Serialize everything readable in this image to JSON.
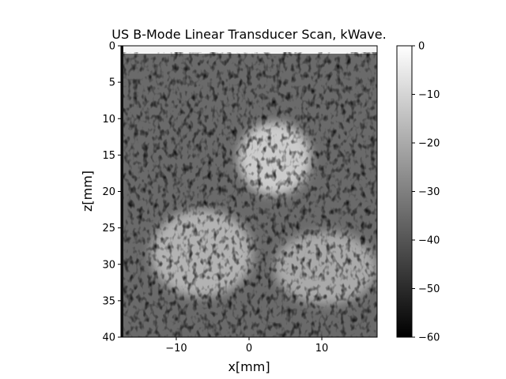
{
  "chart_data": {
    "type": "heatmap",
    "title": "US B-Mode Linear Transducer Scan, kWave.",
    "xlabel": "x[mm]",
    "ylabel": "z[mm]",
    "xlim": [
      -17.6,
      17.6
    ],
    "ylim": [
      40,
      0
    ],
    "x_ticks": [
      -10,
      0,
      10
    ],
    "x_tick_labels": [
      "−10",
      "0",
      "10"
    ],
    "y_ticks": [
      0,
      5,
      10,
      15,
      20,
      25,
      30,
      35,
      40
    ],
    "y_tick_labels": [
      "0",
      "5",
      "10",
      "15",
      "20",
      "25",
      "30",
      "35",
      "40"
    ],
    "colormap": "gray",
    "colorbar": {
      "range": [
        -60,
        0
      ],
      "ticks": [
        0,
        -10,
        -20,
        -30,
        -40,
        -50,
        -60
      ],
      "tick_labels": [
        "0",
        "−10",
        "−20",
        "−30",
        "−40",
        "−50",
        "−60"
      ]
    },
    "bright_regions": [
      {
        "x_center": 3.5,
        "z_center": 15.5,
        "x_radius": 5,
        "z_radius": 5,
        "level_db": -12
      },
      {
        "x_center": -6.5,
        "z_center": 28.5,
        "x_radius": 7,
        "z_radius": 6,
        "level_db": -18
      },
      {
        "x_center": 10.5,
        "z_center": 30.5,
        "x_radius": 7,
        "z_radius": 5,
        "level_db": -20
      }
    ],
    "background_level_db": -35
  }
}
